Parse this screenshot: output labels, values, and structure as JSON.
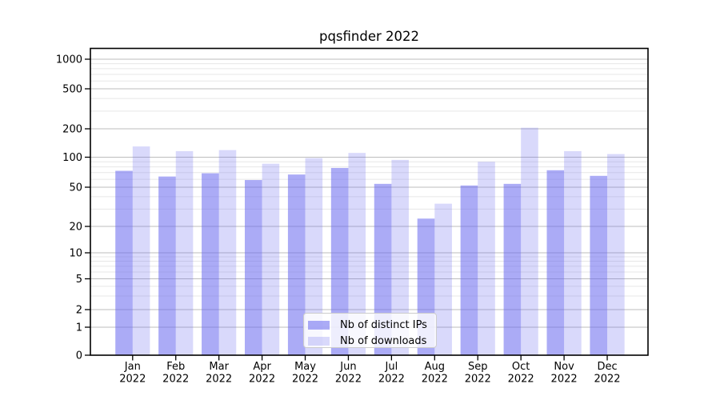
{
  "chart_data": {
    "type": "bar",
    "title": "pqsfinder 2022",
    "categories": [
      "Jan",
      "Feb",
      "Mar",
      "Apr",
      "May",
      "Jun",
      "Jul",
      "Aug",
      "Sep",
      "Oct",
      "Nov",
      "Dec"
    ],
    "category_year": "2022",
    "series": [
      {
        "name": "Nb of distinct IPs",
        "values": [
          73,
          64,
          69,
          59,
          67,
          78,
          54,
          24,
          52,
          54,
          74,
          65
        ]
      },
      {
        "name": "Nb of downloads",
        "values": [
          130,
          116,
          119,
          86,
          98,
          111,
          94,
          34,
          90,
          205,
          116,
          108
        ]
      }
    ],
    "y_scale": "pseudo-log",
    "y_ticks": [
      0,
      1,
      2,
      5,
      10,
      20,
      50,
      100,
      200,
      500,
      1000
    ],
    "y_minor_gridlines": [
      3,
      4,
      6,
      7,
      8,
      9,
      30,
      40,
      60,
      70,
      80,
      90,
      300,
      400,
      600,
      700,
      800,
      900
    ],
    "ylim": [
      0,
      1300
    ],
    "grid": true,
    "legend": {
      "position": "lower-center-inside",
      "labels": [
        "Nb of distinct IPs",
        "Nb of downloads"
      ]
    }
  },
  "colors": {
    "bar_base": "#6666ee",
    "ips_fill": "rgba(102,102,238,0.55)",
    "downloads_fill": "rgba(102,102,238,0.25)",
    "grid_major": "#bdbdbd",
    "grid_minor": "#e7e7e7",
    "axis": "#000000",
    "text": "#000000",
    "legend_border": "#cccccc",
    "legend_bg": "rgba(255,255,255,0.8)"
  }
}
